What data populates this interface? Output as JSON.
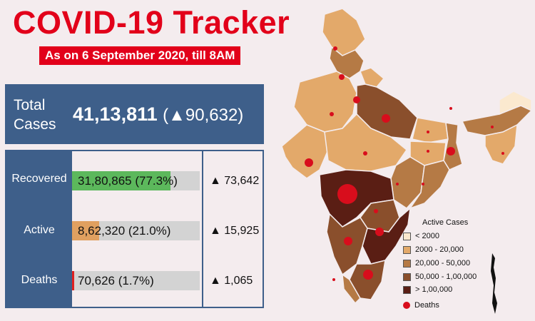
{
  "header": {
    "title": "COVID-19 Tracker",
    "subtitle": "As on 6 September 2020, till 8AM"
  },
  "colors": {
    "brand_red": "#e2001a",
    "panel_blue": "#3e5f8a",
    "recovered": "#5cb85c",
    "active": "#e0a060",
    "deaths": "#e02020",
    "track": "#d3d3d3"
  },
  "total": {
    "label": "Total Cases",
    "value": "41,13,811",
    "delta": "(▲90,632)"
  },
  "chart_data": [
    {
      "type": "bar",
      "categories": [
        "Recovered",
        "Active",
        "Deaths"
      ],
      "values": [
        3180865,
        862320,
        70626
      ],
      "shares_pct": [
        77.3,
        21.0,
        1.7
      ],
      "display_values": [
        "31,80,865 (77.3%)",
        "8,62,320 (21.0%)",
        "70,626 (1.7%)"
      ],
      "daily_change": [
        "▲ 73,642",
        "▲ 15,925",
        "▲ 1,065"
      ]
    },
    {
      "type": "heatmap",
      "legend_title": "Active Cases",
      "legend": [
        {
          "label": "< 2000",
          "color": "#fbe9cf"
        },
        {
          "label": "2000 - 20,000",
          "color": "#e3a96a"
        },
        {
          "label": "20,000 - 50,000",
          "color": "#b57a45"
        },
        {
          "label": "50,000 - 1,00,000",
          "color": "#8a4f2c"
        },
        {
          "label": "> 1,00,000",
          "color": "#5a1e14"
        }
      ],
      "deaths_legend": "Deaths"
    }
  ]
}
